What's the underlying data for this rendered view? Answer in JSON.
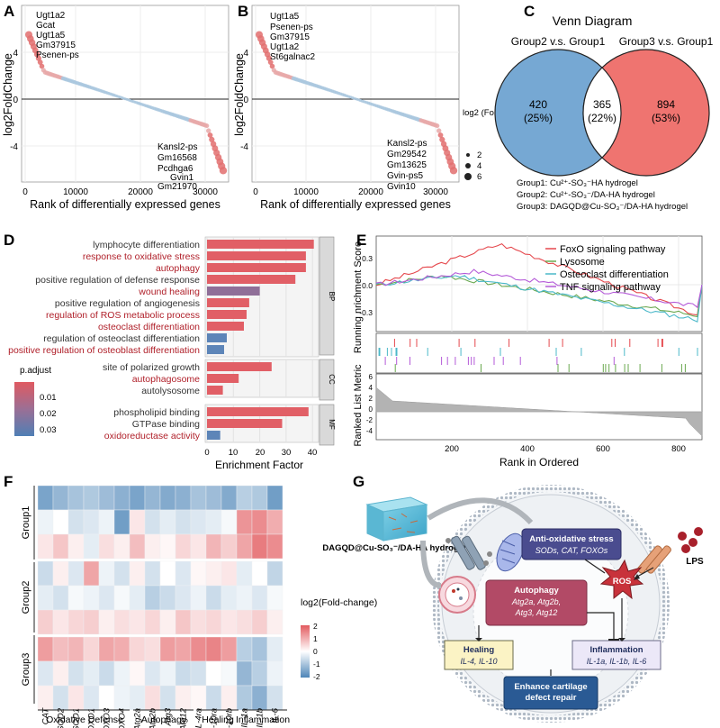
{
  "panels": {
    "A": {
      "letter": "A",
      "xlabel": "Rank of differentially expressed genes",
      "ylabel": "log2FoldChange",
      "xticks": [
        "0",
        "10000",
        "20000",
        "30000"
      ],
      "yticks": [
        "4",
        "0",
        "-4"
      ],
      "up_genes": [
        "Ugt1a2",
        "Gcat",
        "Ugt1a5",
        "Gm37915",
        "Psenen-ps"
      ],
      "down_genes": [
        "Kansl2-ps",
        "Gm16568",
        "Pcdhga6",
        "Gvin1",
        "Gm21970"
      ]
    },
    "B": {
      "letter": "B",
      "xlabel": "Rank of differentially expressed genes",
      "ylabel": "log2FoldChange",
      "xticks": [
        "0",
        "10000",
        "20000",
        "30000"
      ],
      "yticks": [
        "4",
        "0",
        "-4"
      ],
      "up_genes": [
        "Ugt1a5",
        "Psenen-ps",
        "Gm37915",
        "Ugt1a2",
        "St6galnac2"
      ],
      "down_genes": [
        "Kansl2-ps",
        "Gm29542",
        "Gm13625",
        "Gvin-ps5",
        "Gvin10"
      ],
      "legend_title": "log2 (Fold-Change)",
      "legend_sizes": [
        "2",
        "4",
        "6"
      ]
    },
    "C": {
      "letter": "C",
      "title": "Venn Diagram",
      "left_label": "Group2 v.s. Group1",
      "right_label": "Group3 v.s. Group1",
      "left_only": "420",
      "left_only_pct": "(25%)",
      "overlap": "365",
      "overlap_pct": "(22%)",
      "right_only": "894",
      "right_only_pct": "(53%)",
      "groups": [
        "Group1: Cu²⁺-SO₃⁻HA hydrogel",
        "Group2: Cu²⁺-SO₃⁻/DA-HA hydrogel",
        "Group3: DAGQD@Cu-SO₃⁻/DA-HA hydrogel"
      ]
    },
    "D": {
      "letter": "D",
      "xlabel": "Enrichment Factor",
      "xticks": [
        "0",
        "10",
        "20",
        "30",
        "40"
      ],
      "legend_title": "p.adjust",
      "legend_ticks": [
        "0.01",
        "0.02",
        "0.03"
      ]
    },
    "E": {
      "letter": "E",
      "ylabel_top": "Running nrichment Score",
      "ylabel_bottom": "Ranked List Metric",
      "xlabel": "Rank in Ordered",
      "yticks_top": [
        "0.3",
        "0.0",
        "-0.3"
      ],
      "yticks_bottom": [
        "6",
        "4",
        "2",
        "0",
        "-2",
        "-4"
      ],
      "xticks": [
        "200",
        "400",
        "600",
        "800"
      ],
      "pathways": [
        {
          "name": "FoxO signaling pathway",
          "color": "#e5484d"
        },
        {
          "name": "Lysosome",
          "color": "#6aa84f"
        },
        {
          "name": "Osteoclast differentiation",
          "color": "#4bb8c9"
        },
        {
          "name": "TNF signaling pathway",
          "color": "#b45ad8"
        }
      ]
    },
    "F": {
      "letter": "F",
      "genes": [
        "CAT",
        "SOD2",
        "SOD1",
        "FOXO1",
        "FOXO3",
        "FOXO4",
        "Atg2a",
        "Atg2b",
        "Atg3",
        "Atg12",
        "IL-4ra",
        "IL-10ra",
        "IL-10rb",
        "IL-1a",
        "IL-1b",
        "IL-6"
      ],
      "groups": [
        "Group1",
        "Group2",
        "Group3"
      ],
      "categories": [
        "Oxidative Defense",
        "Autophagy",
        "Healing",
        "Inflammation"
      ],
      "legend_title": "log2(Fold-change)",
      "legend_ticks": [
        "2",
        "1",
        "0",
        "-1",
        "-2"
      ]
    },
    "G": {
      "letter": "G",
      "hydrogel_label": "DAGQD@Cu-SO₃⁻/DA-HA hydrogel",
      "lps_label": "LPS",
      "ros_label": "ROS",
      "antiox_title": "Anti-oxidative stress",
      "antiox_sub": "SODs, CAT, FOXOs",
      "autophagy_title": "Autophagy",
      "autophagy_sub1": "Atg2a, Atg2b,",
      "autophagy_sub2": "Atg3, Atg12",
      "healing_title": "Healing",
      "healing_sub": "IL-4, IL-10",
      "inflammation_title": "Inflammation",
      "inflammation_sub": "IL-1a, IL-1b, IL-6",
      "outcome": "Enhance cartilage defect repair"
    }
  },
  "chart_data": [
    {
      "type": "bar",
      "title": "GO enrichment (panel D)",
      "xlabel": "Enrichment Factor",
      "xlim": [
        0,
        42
      ],
      "terms": [
        {
          "term": "lymphocyte differentiation",
          "value": 40.5,
          "padj": 0.004,
          "ontology": "BP",
          "highlight": false
        },
        {
          "term": "response to oxidative stress",
          "value": 37.5,
          "padj": 0.004,
          "ontology": "BP",
          "highlight": true
        },
        {
          "term": "autophagy",
          "value": 37.5,
          "padj": 0.004,
          "ontology": "BP",
          "highlight": true
        },
        {
          "term": "positive regulation of defense response",
          "value": 33.5,
          "padj": 0.004,
          "ontology": "BP",
          "highlight": false
        },
        {
          "term": "wound healing",
          "value": 20,
          "padj": 0.022,
          "ontology": "BP",
          "highlight": true
        },
        {
          "term": "positive regulation of angiogenesis",
          "value": 16,
          "padj": 0.004,
          "ontology": "BP",
          "highlight": false
        },
        {
          "term": "regulation of ROS metabolic process",
          "value": 15,
          "padj": 0.004,
          "ontology": "BP",
          "highlight": true
        },
        {
          "term": "osteoclast differentiation",
          "value": 14,
          "padj": 0.004,
          "ontology": "BP",
          "highlight": true
        },
        {
          "term": "regulation of osteoclast differentiation",
          "value": 7.5,
          "padj": 0.032,
          "ontology": "BP",
          "highlight": false
        },
        {
          "term": "positive regulation of osteoblast differentiation",
          "value": 6.5,
          "padj": 0.032,
          "ontology": "BP",
          "highlight": true
        },
        {
          "term": "site of polarized growth",
          "value": 24.5,
          "padj": 0.004,
          "ontology": "CC",
          "highlight": false
        },
        {
          "term": "autophagosome",
          "value": 12,
          "padj": 0.004,
          "ontology": "CC",
          "highlight": true
        },
        {
          "term": "autolysosome",
          "value": 6,
          "padj": 0.004,
          "ontology": "CC",
          "highlight": false
        },
        {
          "term": "phospholipid binding",
          "value": 38.5,
          "padj": 0.004,
          "ontology": "MF",
          "highlight": false
        },
        {
          "term": "GTPase binding",
          "value": 28.5,
          "padj": 0.004,
          "ontology": "MF",
          "highlight": false
        },
        {
          "term": "oxidoreductase activity",
          "value": 5,
          "padj": 0.032,
          "ontology": "MF",
          "highlight": true
        }
      ]
    },
    {
      "type": "heatmap",
      "title": "Gene expression heatmap (panel F)",
      "columns": [
        "CAT",
        "SOD2",
        "SOD1",
        "FOXO1",
        "FOXO3",
        "FOXO4",
        "Atg2a",
        "Atg2b",
        "Atg3",
        "Atg12",
        "IL-4ra",
        "IL-10ra",
        "IL-10rb",
        "IL-1a",
        "IL-1b",
        "IL-6"
      ],
      "row_groups": [
        "Group1",
        "Group1",
        "Group1",
        "Group2",
        "Group2",
        "Group2",
        "Group3",
        "Group3",
        "Group3"
      ],
      "values": [
        [
          -1.5,
          -1.2,
          -1.0,
          -0.9,
          -1.1,
          -1.3,
          -1.5,
          -1.2,
          -1.4,
          -1.3,
          -1.0,
          -1.1,
          -1.4,
          -0.8,
          -0.9,
          -1.6
        ],
        [
          -0.2,
          0.0,
          -0.5,
          -0.4,
          -0.2,
          -1.6,
          0.3,
          -0.5,
          -0.3,
          -0.5,
          -0.4,
          -0.3,
          -0.1,
          1.3,
          1.4,
          1.0
        ],
        [
          0.3,
          0.7,
          0.2,
          -0.3,
          0.4,
          0.2,
          0.8,
          0.2,
          0.1,
          0.5,
          0.3,
          0.9,
          0.6,
          1.1,
          1.6,
          1.4
        ],
        [
          -0.6,
          0.2,
          -0.4,
          1.1,
          -0.2,
          -0.5,
          0.2,
          -0.5,
          0.0,
          -0.4,
          0.1,
          0.2,
          0.3,
          -0.3,
          0.0,
          -0.7
        ],
        [
          -0.3,
          -0.5,
          -0.1,
          -0.2,
          -0.4,
          -0.1,
          -0.3,
          -0.8,
          -0.6,
          -0.4,
          -0.2,
          -0.6,
          -0.3,
          -0.2,
          -0.4,
          -0.1
        ],
        [
          0.6,
          0.3,
          0.5,
          0.6,
          0.2,
          0.4,
          0.3,
          0.5,
          0.2,
          0.7,
          0.4,
          0.5,
          0.3,
          0.4,
          0.6,
          0.2
        ],
        [
          1.2,
          0.8,
          0.9,
          0.5,
          1.1,
          1.0,
          0.5,
          0.4,
          1.2,
          1.1,
          1.4,
          1.5,
          1.2,
          -0.8,
          -1.0,
          -0.3
        ],
        [
          -0.4,
          0.2,
          -0.5,
          -0.3,
          -0.6,
          -0.2,
          0.1,
          -0.4,
          -0.2,
          -0.6,
          -0.5,
          0.0,
          -0.1,
          -1.2,
          -0.8,
          -0.2
        ],
        [
          0.2,
          -0.5,
          0.3,
          -0.4,
          0.0,
          -0.2,
          -0.3,
          0.4,
          -0.5,
          0.2,
          0.1,
          -0.6,
          0.2,
          -0.9,
          -1.3,
          -0.5
        ]
      ],
      "scale": [
        -2,
        2
      ]
    }
  ]
}
